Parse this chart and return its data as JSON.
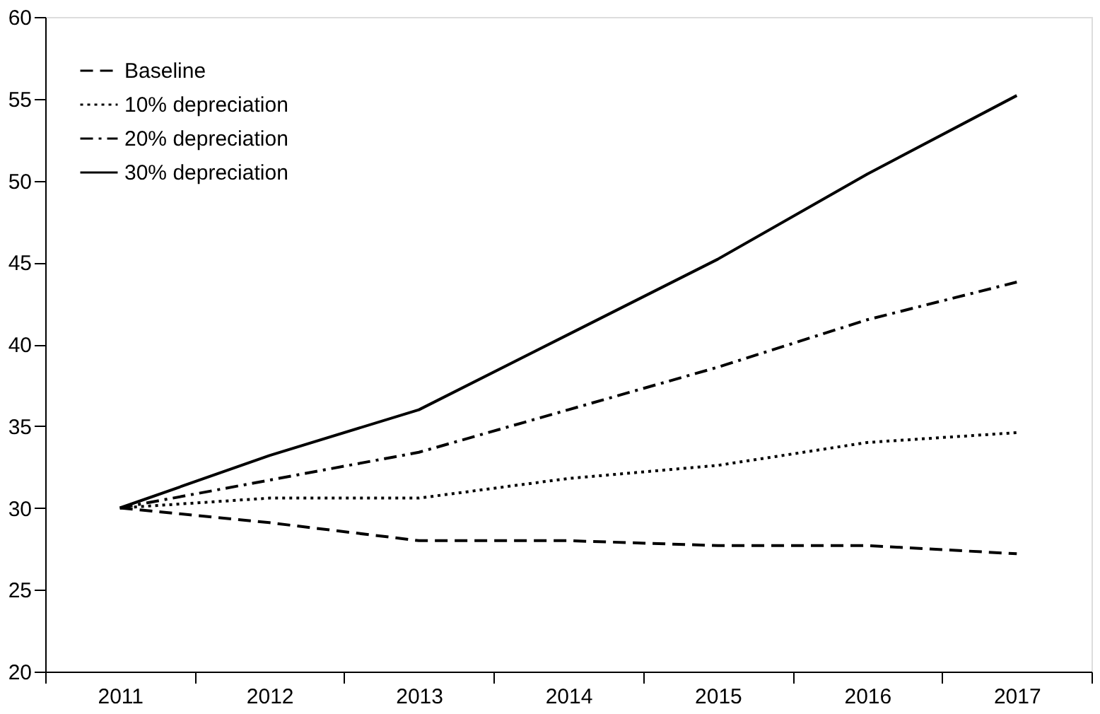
{
  "chart_data": {
    "type": "line",
    "categories": [
      "2011",
      "2012",
      "2013",
      "2014",
      "2015",
      "2016",
      "2017"
    ],
    "series": [
      {
        "name": "Baseline",
        "color": "#000000",
        "line_style": "dashed",
        "values": [
          30,
          29.1,
          28,
          28,
          27.7,
          27.7,
          27.2
        ]
      },
      {
        "name": "10% depreciation",
        "color": "#000000",
        "line_style": "dotted",
        "values": [
          30,
          30.6,
          30.6,
          31.8,
          32.6,
          34,
          34.6
        ]
      },
      {
        "name": "20% depreciation",
        "color": "#000000",
        "line_style": "dashdot",
        "values": [
          30,
          31.7,
          33.4,
          36,
          38.6,
          41.5,
          43.8
        ]
      },
      {
        "name": "30% depreciation",
        "color": "#000000",
        "line_style": "solid",
        "values": [
          30,
          33.2,
          36,
          40.6,
          45.2,
          50.4,
          55.2
        ]
      }
    ],
    "ylim": [
      20,
      60
    ],
    "yticks": [
      20,
      25,
      30,
      35,
      40,
      45,
      50,
      55,
      60
    ],
    "grid": false,
    "legend": "top left",
    "marker": "none"
  }
}
